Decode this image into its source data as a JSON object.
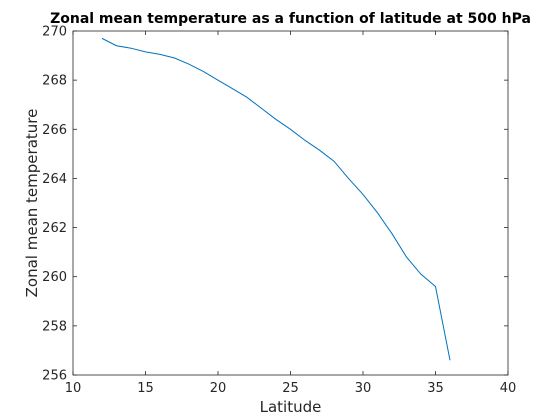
{
  "chart_data": {
    "type": "line",
    "title": "Zonal mean temperature as a function of latitude at 500 hPa",
    "xlabel": "Latitude",
    "ylabel": "Zonal mean temperature",
    "xlim": [
      10,
      40
    ],
    "ylim": [
      256,
      270
    ],
    "xticks": [
      10,
      15,
      20,
      25,
      30,
      35,
      40
    ],
    "yticks": [
      256,
      258,
      260,
      262,
      264,
      266,
      268,
      270
    ],
    "grid": false,
    "series": [
      {
        "color": "#0072bd",
        "x": [
          12,
          13,
          14,
          15,
          16,
          17,
          18,
          19,
          20,
          21,
          22,
          23,
          24,
          25,
          26,
          27,
          28,
          29,
          30,
          31,
          32,
          33,
          34,
          35,
          36
        ],
        "y": [
          269.7,
          269.4,
          269.3,
          269.15,
          269.05,
          268.9,
          268.65,
          268.35,
          268.0,
          267.65,
          267.3,
          266.85,
          266.4,
          266.0,
          265.55,
          265.15,
          264.7,
          264.0,
          263.35,
          262.6,
          261.75,
          260.8,
          260.1,
          259.6,
          256.6
        ]
      }
    ]
  }
}
